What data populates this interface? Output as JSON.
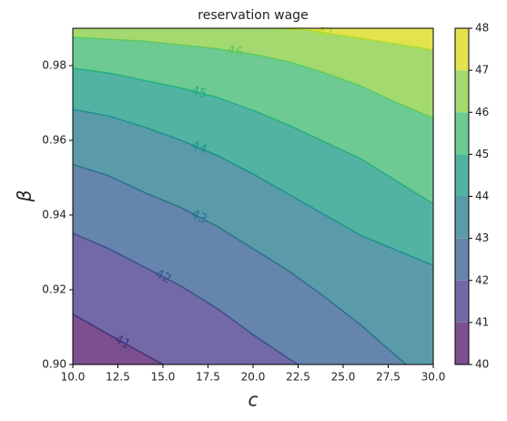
{
  "chart_data": {
    "type": "contour",
    "title": "reservation wage",
    "xlabel": "c",
    "ylabel": "β",
    "xlim": [
      10,
      30
    ],
    "ylim": [
      0.9,
      0.99
    ],
    "xticks": [
      {
        "value": 10,
        "label": "10.0"
      },
      12.5,
      {
        "value": 15,
        "label": "15.0"
      },
      17.5,
      {
        "value": 20,
        "label": "20.0"
      },
      22.5,
      {
        "value": 25,
        "label": "25.0"
      },
      27.5,
      {
        "value": 30,
        "label": "30.0"
      }
    ],
    "yticks": [
      {
        "value": 0.9,
        "label": "0.90"
      },
      0.92,
      0.94,
      0.96,
      0.98
    ],
    "levels": [
      40,
      41,
      42,
      43,
      44,
      45,
      46,
      47,
      48
    ],
    "colors": [
      "#7c4f8e",
      "#7369a6",
      "#6585ac",
      "#5b9ba9",
      "#52b3a3",
      "#6dca93",
      "#a3d96e",
      "#e2e34f"
    ],
    "contours": [
      {
        "level": 41,
        "color": "#46327e",
        "x": [
          10,
          12,
          13.5,
          15
        ],
        "y": [
          0.9135,
          0.908,
          0.904,
          0.9
        ]
      },
      {
        "level": 42,
        "color": "#3b528b",
        "x": [
          10,
          12,
          14,
          16,
          18,
          20,
          22,
          22.5
        ],
        "y": [
          0.9351,
          0.931,
          0.926,
          0.921,
          0.915,
          0.908,
          0.9015,
          0.9
        ]
      },
      {
        "level": 43,
        "color": "#2c728e",
        "x": [
          10,
          12,
          14,
          16,
          18,
          20,
          22,
          24,
          26,
          28,
          28.5
        ],
        "y": [
          0.9535,
          0.9505,
          0.946,
          0.942,
          0.937,
          0.931,
          0.925,
          0.918,
          0.9105,
          0.902,
          0.9
        ]
      },
      {
        "level": 44,
        "color": "#21918c",
        "x": [
          10,
          12,
          14,
          16,
          18,
          20,
          22,
          24,
          26,
          28,
          30
        ],
        "y": [
          0.9683,
          0.9665,
          0.9635,
          0.96,
          0.956,
          0.951,
          0.9455,
          0.94,
          0.9345,
          0.9305,
          0.9265
        ]
      },
      {
        "level": 45,
        "color": "#28ae80",
        "x": [
          10,
          12,
          14,
          16,
          18,
          20,
          22,
          24,
          26,
          28,
          30
        ],
        "y": [
          0.9793,
          0.978,
          0.976,
          0.974,
          0.9715,
          0.968,
          0.964,
          0.9595,
          0.955,
          0.949,
          0.943
        ]
      },
      {
        "level": 46,
        "color": "#5ec962",
        "x": [
          10,
          14,
          18,
          20,
          22,
          24,
          26,
          28,
          30
        ],
        "y": [
          0.9876,
          0.9865,
          0.9845,
          0.983,
          0.981,
          0.978,
          0.9745,
          0.97,
          0.9659
        ]
      },
      {
        "level": 47,
        "color": "#addc30",
        "x": [
          21,
          23,
          25,
          27,
          29,
          30
        ],
        "y": [
          0.99,
          0.9895,
          0.988,
          0.9865,
          0.985,
          0.9841
        ]
      }
    ]
  }
}
